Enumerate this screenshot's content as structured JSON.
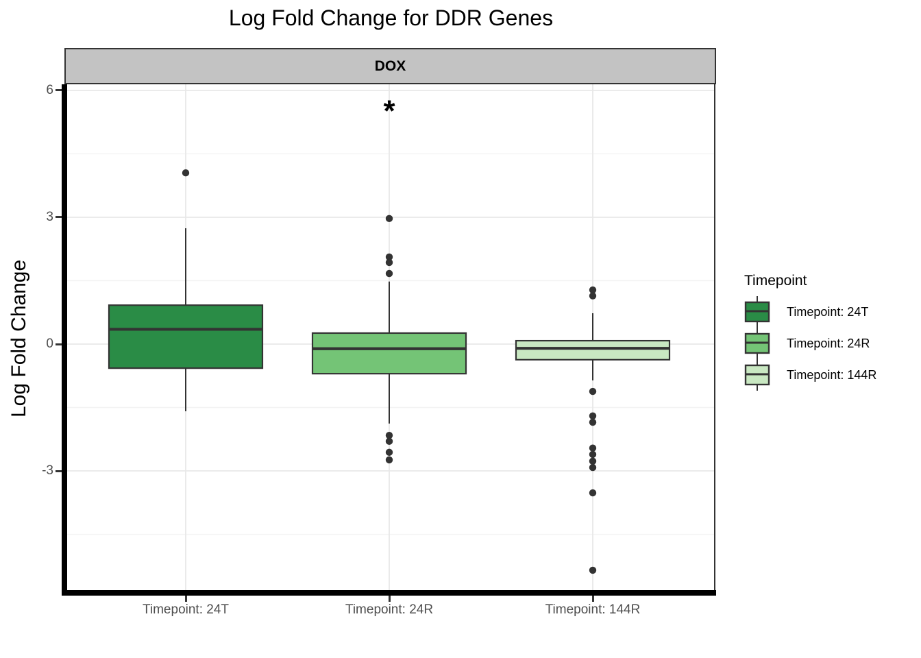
{
  "title": "Log Fold Change for DDR Genes",
  "facet": {
    "label": "DOX"
  },
  "y_axis": {
    "title": "Log Fold Change"
  },
  "x_axis": {
    "labels": [
      "Timepoint: 24T",
      "Timepoint: 24R",
      "Timepoint: 144R"
    ]
  },
  "legend": {
    "title": "Timepoint",
    "entries": [
      {
        "label": "Timepoint: 24T",
        "color": "#2A8C46"
      },
      {
        "label": "Timepoint: 24R",
        "color": "#74C476"
      },
      {
        "label": "Timepoint: 144R",
        "color": "#C9E8C2"
      }
    ]
  },
  "colors": {
    "box_border": "#333333",
    "outlier": "#333333",
    "strip_fill": "#C3C3C3",
    "grid_major": "#E8E8E8",
    "grid_minor": "#F3F3F3",
    "axis_text": "#4d4d4d"
  },
  "chart_data": {
    "type": "boxplot",
    "title": "Log Fold Change for DDR Genes",
    "facet_label": "DOX",
    "xlabel": "",
    "ylabel": "Log Fold Change",
    "ylim": [
      -5.9,
      6.16
    ],
    "yticks_major": [
      6,
      3,
      0,
      -3
    ],
    "yticks_minor": [
      4.5,
      1.5,
      -1.5,
      -4.5
    ],
    "grid": true,
    "legend_position": "right",
    "categories": [
      "Timepoint: 24T",
      "Timepoint: 24R",
      "Timepoint: 144R"
    ],
    "series": [
      {
        "name": "Timepoint: 24T",
        "fill": "#2A8C46",
        "q1": -0.57,
        "median": 0.35,
        "q3": 0.92,
        "whisker_low": -1.59,
        "whisker_high": 2.74,
        "outliers": [
          4.05
        ]
      },
      {
        "name": "Timepoint: 24R",
        "fill": "#74C476",
        "q1": -0.7,
        "median": -0.11,
        "q3": 0.26,
        "whisker_low": -1.88,
        "whisker_high": 1.48,
        "outliers": [
          2.97,
          2.06,
          1.93,
          1.67,
          -2.16,
          -2.3,
          -2.56,
          -2.74
        ]
      },
      {
        "name": "Timepoint: 144R",
        "fill": "#C9E8C2",
        "q1": -0.37,
        "median": -0.1,
        "q3": 0.08,
        "whisker_low": -0.86,
        "whisker_high": 0.73,
        "outliers": [
          1.28,
          1.14,
          -1.12,
          -1.7,
          -1.85,
          -2.46,
          -2.61,
          -2.77,
          -2.92,
          -3.52,
          -5.35
        ]
      }
    ],
    "annotations": [
      {
        "text": "*",
        "category": "Timepoint: 24R",
        "y": 5.6
      }
    ]
  }
}
